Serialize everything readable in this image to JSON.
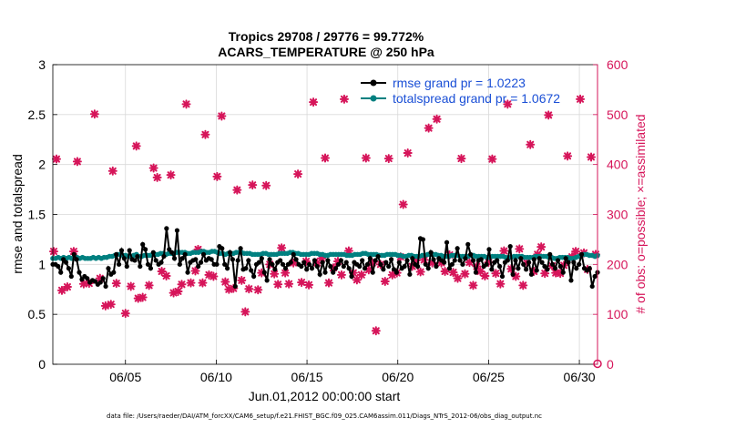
{
  "chart_data": {
    "type": "line",
    "title": [
      "Tropics 29708 / 29776 = 99.772%",
      "ACARS_TEMPERATURE @ 250 hPa"
    ],
    "xlabel": "Jun.01,2012 00:00:00 start",
    "ylabel": "rmse and totalspread",
    "ylabel_right": "# of obs: o=possible; ×=assimilated",
    "footer": "data file: /Users/raeder/DAI/ATM_forcXX/CAM6_setup/f.e21.FHIST_BGC.f09_025.CAM6assim.011/Diags_NTrS_2012-06/obs_diag_output.nc",
    "xlim": [
      1,
      31
    ],
    "ylim": [
      0,
      3
    ],
    "ylim_right": [
      0,
      600
    ],
    "x_ticks": [
      5,
      10,
      15,
      20,
      25,
      30
    ],
    "x_tick_labels": [
      "06/05",
      "06/10",
      "06/15",
      "06/20",
      "06/25",
      "06/30"
    ],
    "y_ticks": [
      0,
      0.5,
      1,
      1.5,
      2,
      2.5,
      3
    ],
    "y_tick_labels": [
      "0",
      "0.5",
      "1",
      "1.5",
      "2",
      "2.5",
      "3"
    ],
    "y_right_ticks": [
      0,
      100,
      200,
      300,
      400,
      500,
      600
    ],
    "y_right_tick_labels": [
      "0",
      "100",
      "200",
      "300",
      "400",
      "500",
      "600"
    ],
    "colors": {
      "rmse": "#000000",
      "spread": "#008080",
      "obs": "#d6155a",
      "legend_text": "#1a4fd6"
    },
    "legend": [
      "rmse grand pr = 1.0223",
      "totalspread grand pr = 1.0672"
    ],
    "series": [
      {
        "name": "rmse",
        "values": [
          1.0,
          1.0,
          0.98,
          0.92,
          1.05,
          1.02,
          0.96,
          0.88,
          1.1,
          1.05,
          0.92,
          0.85,
          0.88,
          0.86,
          0.82,
          0.84,
          0.83,
          0.8,
          0.82,
          0.86,
          0.78,
          0.96,
          0.9,
          0.92,
          1.1,
          1.0,
          1.14,
          1.06,
          0.98,
          1.14,
          1.05,
          1.04,
          1.08,
          0.98,
          1.2,
          1.15,
          1.0,
          0.96,
          1.12,
          1.04,
          1.0,
          1.02,
          1.08,
          1.36,
          1.15,
          1.12,
          1.06,
          1.34,
          1.0,
          1.06,
          1.1,
          0.92,
          1.02,
          1.04,
          1.05,
          0.98,
          1.02,
          1.1,
          1.04,
          1.06,
          1.05,
          1.0,
          1.0,
          1.18,
          1.16,
          1.0,
          0.96,
          1.12,
          1.05,
          0.78,
          1.04,
          1.16,
          0.95,
          0.96,
          1.04,
          0.94,
          0.88,
          1.0,
          1.02,
          1.06,
          0.92,
          0.84,
          1.05,
          1.0,
          0.95,
          1.02,
          1.04,
          1.0,
          0.96,
          1.0,
          1.02,
          1.1,
          1.05,
          1.0,
          0.98,
          1.02,
          0.95,
          1.0,
          0.96,
          1.04,
          0.98,
          0.9,
          1.02,
          0.92,
          1.04,
          0.98,
          0.92,
          0.96,
          1.0,
          1.04,
          0.98,
          1.02,
          0.96,
          0.88,
          1.02,
          1.0,
          0.98,
          1.04,
          0.96,
          1.0,
          1.06,
          0.92,
          1.04,
          1.08,
          1.0,
          0.95,
          1.02,
          0.98,
          1.05,
          0.95,
          0.92,
          1.02,
          0.96,
          0.98,
          1.04,
          0.9,
          1.06,
          1.0,
          0.98,
          1.26,
          1.25,
          1.0,
          0.96,
          1.12,
          1.05,
          0.98,
          1.06,
          1.04,
          1.02,
          1.22,
          0.96,
          1.0,
          1.04,
          1.16,
          1.04,
          1.0,
          1.06,
          1.2,
          1.1,
          1.04,
          0.92,
          1.04,
          1.05,
          0.98,
          1.0,
          1.15,
          0.95,
          1.02,
          1.04,
          0.98,
          0.88,
          1.02,
          1.04,
          1.18,
          0.9,
          1.04,
          0.96,
          1.06,
          1.0,
          0.95,
          1.02,
          0.9,
          1.05,
          0.94,
          1.06,
          1.02,
          0.98,
          0.95,
          1.1,
          1.0,
          0.96,
          1.04,
          0.98,
          0.92,
          1.06,
          1.02,
          0.84,
          1.02,
          0.96,
          1.0,
          1.1,
          0.96,
          0.94,
          0.96,
          0.78,
          0.88,
          0.92
        ]
      },
      {
        "name": "totalspread",
        "values": [
          1.06,
          1.06,
          1.07,
          1.06,
          1.07,
          1.06,
          1.07,
          1.06,
          1.06,
          1.07,
          1.06,
          1.07,
          1.06,
          1.06,
          1.06,
          1.07,
          1.06,
          1.07,
          1.06,
          1.07,
          1.07,
          1.08,
          1.08,
          1.09,
          1.1,
          1.1,
          1.09,
          1.09,
          1.08,
          1.08,
          1.09,
          1.1,
          1.08,
          1.08,
          1.09,
          1.09,
          1.09,
          1.1,
          1.1,
          1.1,
          1.11,
          1.11,
          1.1,
          1.11,
          1.11,
          1.11,
          1.12,
          1.12,
          1.12,
          1.12,
          1.11,
          1.11,
          1.12,
          1.12,
          1.12,
          1.13,
          1.13,
          1.12,
          1.12,
          1.13,
          1.13,
          1.12,
          1.11,
          1.11,
          1.1,
          1.11,
          1.11,
          1.11,
          1.12,
          1.12,
          1.12,
          1.11,
          1.11,
          1.11,
          1.1,
          1.1,
          1.1,
          1.1,
          1.11,
          1.11,
          1.1,
          1.1,
          1.1,
          1.1,
          1.11,
          1.11,
          1.11,
          1.11,
          1.12,
          1.12,
          1.11,
          1.11,
          1.1,
          1.1,
          1.1,
          1.1,
          1.11,
          1.11,
          1.11,
          1.1,
          1.1,
          1.09,
          1.09,
          1.1,
          1.1,
          1.1,
          1.1,
          1.1,
          1.1,
          1.09,
          1.09,
          1.09,
          1.1,
          1.1,
          1.1,
          1.11,
          1.11,
          1.1,
          1.1,
          1.1,
          1.1,
          1.09,
          1.09,
          1.09,
          1.1,
          1.1,
          1.1,
          1.1,
          1.09,
          1.09,
          1.08,
          1.08,
          1.09,
          1.09,
          1.08,
          1.08,
          1.08,
          1.09,
          1.09,
          1.1,
          1.1,
          1.1,
          1.1,
          1.09,
          1.09,
          1.08,
          1.08,
          1.08,
          1.09,
          1.09,
          1.09,
          1.08,
          1.08,
          1.08,
          1.08,
          1.09,
          1.09,
          1.08,
          1.08,
          1.08,
          1.08,
          1.07,
          1.07,
          1.08,
          1.08,
          1.08,
          1.08,
          1.08,
          1.07,
          1.07,
          1.07,
          1.08,
          1.08,
          1.08,
          1.08,
          1.07,
          1.07,
          1.07,
          1.07,
          1.08,
          1.08,
          1.08,
          1.08,
          1.08,
          1.07,
          1.07,
          1.06,
          1.06,
          1.07,
          1.07,
          1.07,
          1.07,
          1.06,
          1.06,
          1.07,
          1.08,
          1.09,
          1.1,
          1.1,
          1.09,
          1.09,
          1.08,
          1.09
        ]
      },
      {
        "name": "obs_possible",
        "axis": "right",
        "points": [
          [
            1.05,
            226
          ],
          [
            1.2,
            411
          ],
          [
            1.5,
            148
          ],
          [
            1.8,
            155
          ],
          [
            2.15,
            226
          ],
          [
            2.35,
            406
          ],
          [
            2.7,
            161
          ],
          [
            3.0,
            162
          ],
          [
            3.3,
            501
          ],
          [
            3.6,
            172
          ],
          [
            3.9,
            117
          ],
          [
            4.2,
            120
          ],
          [
            4.3,
            387
          ],
          [
            4.5,
            162
          ],
          [
            5.0,
            102
          ],
          [
            5.3,
            156
          ],
          [
            5.6,
            437
          ],
          [
            5.7,
            132
          ],
          [
            5.95,
            134
          ],
          [
            6.3,
            158
          ],
          [
            6.55,
            393
          ],
          [
            6.75,
            374
          ],
          [
            7.0,
            186
          ],
          [
            7.25,
            177
          ],
          [
            7.5,
            379
          ],
          [
            7.65,
            143
          ],
          [
            7.9,
            146
          ],
          [
            8.1,
            160
          ],
          [
            8.35,
            521
          ],
          [
            8.6,
            163
          ],
          [
            8.85,
            187
          ],
          [
            9.0,
            230
          ],
          [
            9.25,
            163
          ],
          [
            9.4,
            460
          ],
          [
            9.6,
            179
          ],
          [
            9.85,
            176
          ],
          [
            10.05,
            376
          ],
          [
            10.3,
            497
          ],
          [
            10.5,
            165
          ],
          [
            10.7,
            150
          ],
          [
            10.95,
            152
          ],
          [
            11.15,
            349
          ],
          [
            11.4,
            168
          ],
          [
            11.6,
            105
          ],
          [
            11.8,
            151
          ],
          [
            12.0,
            359
          ],
          [
            12.3,
            149
          ],
          [
            12.5,
            183
          ],
          [
            12.75,
            358
          ],
          [
            12.95,
            200
          ],
          [
            13.2,
            181
          ],
          [
            13.4,
            160
          ],
          [
            13.6,
            233
          ],
          [
            13.8,
            183
          ],
          [
            14.0,
            161
          ],
          [
            14.25,
            203
          ],
          [
            14.5,
            381
          ],
          [
            14.7,
            164
          ],
          [
            14.95,
            206
          ],
          [
            15.1,
            159
          ],
          [
            15.35,
            525
          ],
          [
            15.55,
            203
          ],
          [
            15.8,
            212
          ],
          [
            16.0,
            413
          ],
          [
            16.2,
            163
          ],
          [
            16.45,
            193
          ],
          [
            16.7,
            206
          ],
          [
            16.9,
            179
          ],
          [
            17.05,
            531
          ],
          [
            17.3,
            227
          ],
          [
            17.55,
            183
          ],
          [
            17.75,
            169
          ],
          [
            18.0,
            179
          ],
          [
            18.25,
            413
          ],
          [
            18.4,
            189
          ],
          [
            18.6,
            203
          ],
          [
            18.8,
            67
          ],
          [
            19.05,
            200
          ],
          [
            19.3,
            166
          ],
          [
            19.5,
            412
          ],
          [
            19.7,
            179
          ],
          [
            19.95,
            183
          ],
          [
            20.15,
            215
          ],
          [
            20.3,
            320
          ],
          [
            20.55,
            423
          ],
          [
            20.8,
            196
          ],
          [
            21.0,
            208
          ],
          [
            21.25,
            185
          ],
          [
            21.45,
            209
          ],
          [
            21.7,
            473
          ],
          [
            21.9,
            203
          ],
          [
            22.15,
            491
          ],
          [
            22.4,
            203
          ],
          [
            22.6,
            186
          ],
          [
            22.85,
            219
          ],
          [
            23.05,
            184
          ],
          [
            23.3,
            172
          ],
          [
            23.5,
            412
          ],
          [
            23.7,
            181
          ],
          [
            23.95,
            204
          ],
          [
            24.15,
            158
          ],
          [
            24.35,
            196
          ],
          [
            24.55,
            186
          ],
          [
            24.8,
            177
          ],
          [
            25.0,
            204
          ],
          [
            25.2,
            411
          ],
          [
            25.4,
            182
          ],
          [
            25.65,
            161
          ],
          [
            25.85,
            227
          ],
          [
            26.05,
            521
          ],
          [
            26.25,
            191
          ],
          [
            26.5,
            176
          ],
          [
            26.7,
            231
          ],
          [
            26.9,
            158
          ],
          [
            27.1,
            203
          ],
          [
            27.3,
            440
          ],
          [
            27.5,
            186
          ],
          [
            27.7,
            220
          ],
          [
            27.9,
            235
          ],
          [
            28.1,
            182
          ],
          [
            28.3,
            499
          ],
          [
            28.5,
            197
          ],
          [
            28.7,
            183
          ],
          [
            28.95,
            182
          ],
          [
            29.15,
            198
          ],
          [
            29.35,
            417
          ],
          [
            29.6,
            215
          ],
          [
            29.8,
            226
          ],
          [
            30.05,
            531
          ],
          [
            30.25,
            223
          ],
          [
            30.45,
            190
          ],
          [
            30.65,
            415
          ],
          [
            30.9,
            220
          ]
        ]
      },
      {
        "name": "obs_assimilated",
        "axis": "right",
        "points": [
          [
            31.0,
            1
          ]
        ]
      }
    ]
  }
}
